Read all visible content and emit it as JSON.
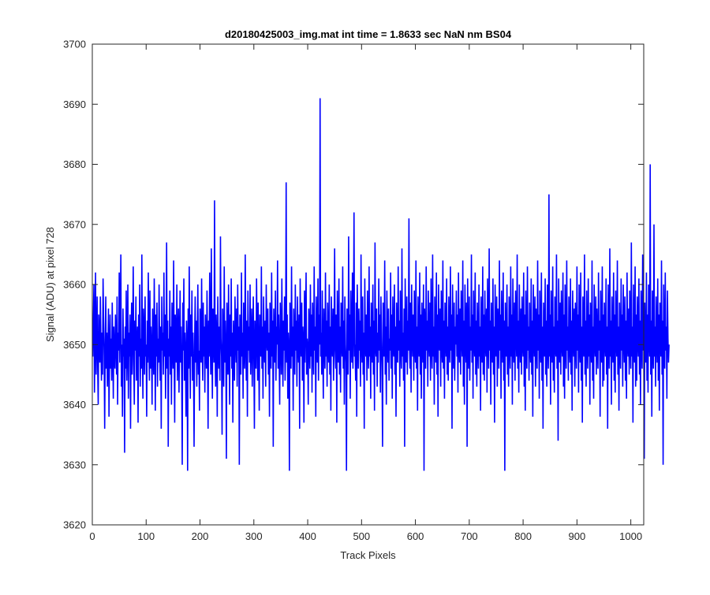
{
  "chart_data": {
    "type": "line",
    "title": "d20180425003_img.mat int time = 1.8633 sec  NaN nm BS04",
    "xlabel": "Track Pixels",
    "ylabel": "Signal (ADU) at pixel 728",
    "xlim": [
      0,
      1024
    ],
    "ylim": [
      3620,
      3700
    ],
    "xticks": [
      0,
      100,
      200,
      300,
      400,
      500,
      600,
      700,
      800,
      900,
      1000
    ],
    "yticks": [
      3620,
      3630,
      3640,
      3650,
      3660,
      3670,
      3680,
      3690,
      3700
    ],
    "xtick_labels": [
      "0",
      "100",
      "200",
      "300",
      "400",
      "500",
      "600",
      "700",
      "800",
      "900",
      "1000"
    ],
    "ytick_labels": [
      "3620",
      "3630",
      "3640",
      "3650",
      "3660",
      "3670",
      "3680",
      "3690",
      "3700"
    ],
    "grid": false,
    "box": true,
    "series": [
      {
        "color": "#0000ff",
        "x_start": 1,
        "x_step": 1,
        "y": [
          3648,
          3655,
          3660,
          3642,
          3652,
          3662,
          3645,
          3650,
          3658,
          3646,
          3640,
          3655,
          3651,
          3647,
          3658,
          3650,
          3644,
          3652,
          3645,
          3661,
          3654,
          3648,
          3636,
          3650,
          3658,
          3646,
          3652,
          3643,
          3648,
          3656,
          3638,
          3649,
          3655,
          3646,
          3651,
          3644,
          3657,
          3650,
          3641,
          3653,
          3648,
          3646,
          3655,
          3651,
          3645,
          3658,
          3640,
          3652,
          3649,
          3662,
          3647,
          3654,
          3665,
          3643,
          3650,
          3638,
          3656,
          3648,
          3651,
          3632,
          3653,
          3646,
          3659,
          3644,
          3650,
          3660,
          3641,
          3652,
          3648,
          3655,
          3636,
          3650,
          3657,
          3645,
          3651,
          3663,
          3647,
          3640,
          3654,
          3649,
          3658,
          3644,
          3650,
          3653,
          3637,
          3655,
          3648,
          3660,
          3643,
          3651,
          3646,
          3665,
          3649,
          3641,
          3656,
          3652,
          3645,
          3658,
          3648,
          3650,
          3638,
          3654,
          3647,
          3662,
          3651,
          3644,
          3659,
          3646,
          3653,
          3649,
          3640,
          3656,
          3650,
          3645,
          3661,
          3652,
          3639,
          3655,
          3648,
          3657,
          3643,
          3651,
          3647,
          3660,
          3650,
          3644,
          3653,
          3636,
          3658,
          3649,
          3652,
          3645,
          3662,
          3648,
          3655,
          3641,
          3650,
          3667,
          3646,
          3654,
          3633,
          3651,
          3648,
          3659,
          3645,
          3653,
          3640,
          3657,
          3650,
          3646,
          3664,
          3649,
          3637,
          3655,
          3652,
          3647,
          3660,
          3644,
          3651,
          3656,
          3642,
          3650,
          3659,
          3647,
          3653,
          3645,
          3630,
          3657,
          3649,
          3661,
          3644,
          3652,
          3648,
          3638,
          3654,
          3650,
          3629,
          3656,
          3646,
          3663,
          3651,
          3641,
          3655,
          3648,
          3659,
          3644,
          3652,
          3646,
          3633,
          3650,
          3658,
          3647,
          3654,
          3643,
          3651,
          3660,
          3645,
          3649,
          3639,
          3656,
          3652,
          3647,
          3661,
          3650,
          3644,
          3657,
          3648,
          3653,
          3642,
          3655,
          3650,
          3646,
          3659,
          3649,
          3636,
          3654,
          3648,
          3662,
          3651,
          3645,
          3666,
          3650,
          3641,
          3656,
          3652,
          3647,
          3674,
          3649,
          3643,
          3655,
          3651,
          3638,
          3658,
          3650,
          3646,
          3653,
          3644,
          3668,
          3651,
          3648,
          3635,
          3656,
          3650,
          3643,
          3663,
          3647,
          3654,
          3649,
          3631,
          3657,
          3652,
          3645,
          3660,
          3650,
          3640,
          3655,
          3648,
          3661,
          3646,
          3652,
          3637,
          3654,
          3650,
          3644,
          3658,
          3651,
          3647,
          3656,
          3643,
          3660,
          3649,
          3653,
          3630,
          3655,
          3650,
          3645,
          3662,
          3648,
          3652,
          3641,
          3657,
          3650,
          3646,
          3665,
          3651,
          3644,
          3654,
          3638,
          3659,
          3649,
          3653,
          3647,
          3660,
          3645,
          3651,
          3656,
          3643,
          3650,
          3658,
          3648,
          3636,
          3654,
          3650,
          3646,
          3661,
          3652,
          3644,
          3657,
          3649,
          3639,
          3655,
          3651,
          3648,
          3663,
          3646,
          3653,
          3641,
          3658,
          3650,
          3647,
          3654,
          3643,
          3660,
          3651,
          3649,
          3656,
          3645,
          3652,
          3638,
          3657,
          3650,
          3646,
          3662,
          3648,
          3654,
          3633,
          3656,
          3651,
          3647,
          3659,
          3644,
          3653,
          3650,
          3664,
          3646,
          3655,
          3648,
          3640,
          3657,
          3652,
          3645,
          3661,
          3650,
          3643,
          3654,
          3649,
          3658,
          3644,
          3651,
          3677,
          3647,
          3655,
          3641,
          3652,
          3649,
          3629,
          3657,
          3650,
          3646,
          3663,
          3648,
          3653,
          3639,
          3656,
          3651,
          3645,
          3660,
          3649,
          3654,
          3643,
          3658,
          3650,
          3647,
          3655,
          3636,
          3661,
          3652,
          3648,
          3657,
          3644,
          3653,
          3650,
          3637,
          3659,
          3647,
          3654,
          3662,
          3645,
          3651,
          3649,
          3640,
          3656,
          3652,
          3646,
          3660,
          3648,
          3655,
          3642,
          3657,
          3650,
          3645,
          3663,
          3649,
          3653,
          3638,
          3658,
          3651,
          3647,
          3661,
          3644,
          3655,
          3650,
          3691,
          3648,
          3652,
          3645,
          3659,
          3649,
          3641,
          3656,
          3651,
          3646,
          3662,
          3648,
          3654,
          3643,
          3657,
          3650,
          3647,
          3660,
          3645,
          3653,
          3639,
          3658,
          3651,
          3648,
          3656,
          3644,
          3652,
          3666,
          3649,
          3646,
          3655,
          3637,
          3659,
          3650,
          3647,
          3661,
          3645,
          3653,
          3642,
          3657,
          3651,
          3648,
          3663,
          3646,
          3654,
          3640,
          3658,
          3650,
          3647,
          3629,
          3656,
          3652,
          3645,
          3668,
          3649,
          3655,
          3641,
          3659,
          3651,
          3647,
          3662,
          3646,
          3653,
          3672,
          3648,
          3650,
          3644,
          3657,
          3638,
          3660,
          3652,
          3646,
          3656,
          3649,
          3654,
          3643,
          3665,
          3650,
          3647,
          3658,
          3645,
          3652,
          3636,
          3661,
          3651,
          3648,
          3655,
          3644,
          3659,
          3650,
          3646,
          3663,
          3648,
          3653,
          3641,
          3657,
          3651,
          3647,
          3660,
          3645,
          3654,
          3639,
          3667,
          3650,
          3648,
          3656,
          3643,
          3652,
          3647,
          3661,
          3649,
          3655,
          3642,
          3658,
          3651,
          3646,
          3633,
          3657,
          3650,
          3648,
          3664,
          3645,
          3653,
          3640,
          3659,
          3652,
          3647,
          3656,
          3644,
          3651,
          3649,
          3662,
          3646,
          3655,
          3641,
          3658,
          3650,
          3648,
          3660,
          3645,
          3653,
          3638,
          3657,
          3651,
          3647,
          3663,
          3649,
          3654,
          3643,
          3659,
          3650,
          3646,
          3666,
          3648,
          3652,
          3644,
          3656,
          3633,
          3661,
          3651,
          3647,
          3658,
          3645,
          3654,
          3649,
          3671,
          3650,
          3646,
          3657,
          3642,
          3660,
          3652,
          3648,
          3655,
          3644,
          3659,
          3650,
          3647,
          3664,
          3646,
          3653,
          3639,
          3658,
          3651,
          3648,
          3662,
          3645,
          3655,
          3641,
          3657,
          3650,
          3647,
          3660,
          3629,
          3656,
          3652,
          3646,
          3663,
          3649,
          3654,
          3643,
          3659,
          3651,
          3648,
          3657,
          3644,
          3661,
          3650,
          3646,
          3665,
          3648,
          3653,
          3640,
          3658,
          3652,
          3647,
          3662,
          3645,
          3655,
          3638,
          3660,
          3651,
          3649,
          3656,
          3643,
          3659,
          3650,
          3647,
          3664,
          3646,
          3654,
          3641,
          3657,
          3652,
          3648,
          3661,
          3645,
          3653,
          3644,
          3658,
          3650,
          3647,
          3663,
          3649,
          3655,
          3636,
          3660,
          3651,
          3646,
          3657,
          3644,
          3653,
          3650,
          3659,
          3648,
          3655,
          3642,
          3662,
          3650,
          3647,
          3656,
          3645,
          3659,
          3651,
          3648,
          3664,
          3643,
          3654,
          3640,
          3660,
          3652,
          3647,
          3657,
          3633,
          3661,
          3650,
          3646,
          3658,
          3644,
          3653,
          3649,
          3665,
          3647,
          3655,
          3641,
          3659,
          3651,
          3648,
          3662,
          3645,
          3654,
          3643,
          3657,
          3650,
          3646,
          3660,
          3648,
          3653,
          3639,
          3658,
          3651,
          3647,
          3663,
          3645,
          3655,
          3644,
          3659,
          3650,
          3648,
          3656,
          3642,
          3661,
          3652,
          3646,
          3666,
          3649,
          3654,
          3640,
          3657,
          3651,
          3647,
          3661,
          3645,
          3653,
          3637,
          3660,
          3650,
          3648,
          3658,
          3643,
          3656,
          3652,
          3646,
          3664,
          3649,
          3655,
          3641,
          3659,
          3651,
          3647,
          3662,
          3644,
          3654,
          3629,
          3657,
          3650,
          3648,
          3660,
          3645,
          3653,
          3643,
          3658,
          3651,
          3646,
          3663,
          3648,
          3655,
          3640,
          3661,
          3650,
          3647,
          3657,
          3644,
          3659,
          3652,
          3648,
          3665,
          3646,
          3654,
          3642,
          3660,
          3651,
          3647,
          3656,
          3645,
          3658,
          3650,
          3648,
          3662,
          3643,
          3655,
          3639,
          3659,
          3651,
          3646,
          3663,
          3649,
          3653,
          3644,
          3657,
          3650,
          3647,
          3661,
          3645,
          3654,
          3638,
          3660,
          3652,
          3648,
          3658,
          3643,
          3656,
          3651,
          3646,
          3664,
          3649,
          3655,
          3641,
          3659,
          3650,
          3647,
          3662,
          3644,
          3653,
          3636,
          3657,
          3651,
          3648,
          3661,
          3645,
          3654,
          3643,
          3660,
          3650,
          3646,
          3675,
          3648,
          3655,
          3640,
          3659,
          3651,
          3647,
          3663,
          3644,
          3653,
          3642,
          3658,
          3650,
          3648,
          3665,
          3646,
          3654,
          3634,
          3661,
          3652,
          3647,
          3657,
          3645,
          3659,
          3650,
          3648,
          3662,
          3643,
          3655,
          3641,
          3660,
          3651,
          3646,
          3664,
          3649,
          3653,
          3644,
          3658,
          3650,
          3647,
          3661,
          3645,
          3654,
          3639,
          3659,
          3652,
          3648,
          3656,
          3643,
          3657,
          3651,
          3646,
          3663,
          3649,
          3655,
          3642,
          3660,
          3650,
          3647,
          3662,
          3644,
          3653,
          3637,
          3658,
          3651,
          3648,
          3665,
          3645,
          3654,
          3643,
          3659,
          3650,
          3646,
          3661,
          3648,
          3655,
          3640,
          3657,
          3652,
          3647,
          3664,
          3644,
          3653,
          3641,
          3660,
          3651,
          3648,
          3658,
          3645,
          3656,
          3650,
          3646,
          3662,
          3649,
          3654,
          3638,
          3659,
          3650,
          3647,
          3663,
          3643,
          3655,
          3644,
          3657,
          3651,
          3648,
          3661,
          3645,
          3653,
          3636,
          3660,
          3652,
          3646,
          3666,
          3648,
          3654,
          3640,
          3658,
          3650,
          3647,
          3662,
          3644,
          3655,
          3642,
          3659,
          3651,
          3648,
          3664,
          3645,
          3653,
          3639,
          3657,
          3650,
          3646,
          3661,
          3649,
          3655,
          3643,
          3660,
          3652,
          3647,
          3658,
          3644,
          3654,
          3641,
          3662,
          3650,
          3648,
          3656,
          3645,
          3659,
          3651,
          3646,
          3667,
          3648,
          3653,
          3637,
          3660,
          3650,
          3647,
          3663,
          3643,
          3655,
          3644,
          3658,
          3651,
          3648,
          3661,
          3645,
          3654,
          3640,
          3659,
          3652,
          3646,
          3665,
          3649,
          3653,
          3631,
          3657,
          3650,
          3647,
          3662,
          3644,
          3655,
          3642,
          3660,
          3651,
          3648,
          3680,
          3645,
          3654,
          3638,
          3659,
          3650,
          3646,
          3670,
          3648,
          3653,
          3643,
          3658,
          3651,
          3647,
          3661,
          3644,
          3655,
          3639,
          3657,
          3652,
          3648,
          3664,
          3645,
          3654,
          3630,
          3660,
          3650,
          3646,
          3662,
          3649,
          3653,
          3641,
          3659,
          3651,
          3647,
          3650
        ]
      }
    ]
  }
}
